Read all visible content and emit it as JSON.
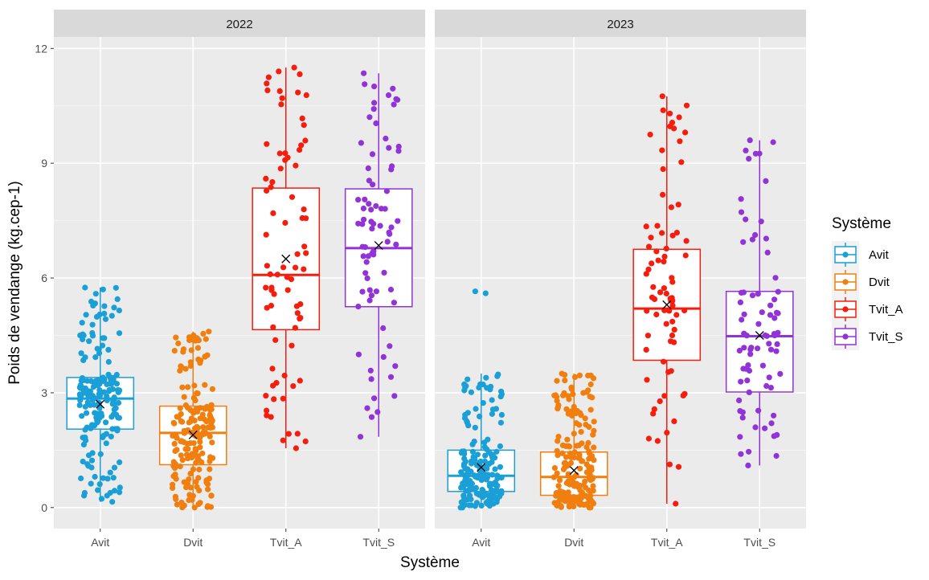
{
  "chart_data": {
    "type": "boxplot",
    "xlabel": "Système",
    "ylabel": "Poids de vendange (kg.cep-1)",
    "ylim": [
      -0.55,
      12.3
    ],
    "yticks": [
      0,
      3,
      6,
      9,
      12
    ],
    "categories": [
      "Avit",
      "Dvit",
      "Tvit_A",
      "Tvit_S"
    ],
    "colors": {
      "Avit": "#1a9fd6",
      "Dvit": "#f07f0f",
      "Tvit_A": "#f51d0d",
      "Tvit_S": "#9133d6"
    },
    "legend": {
      "title": "Système",
      "entries": [
        "Avit",
        "Dvit",
        "Tvit_A",
        "Tvit_S"
      ],
      "position": "right"
    },
    "facets": [
      {
        "label": "2022",
        "groups": [
          {
            "name": "Avit",
            "q1": 2.05,
            "median": 2.85,
            "q3": 3.4,
            "whisker_low": 0.15,
            "whisker_high": 5.75,
            "mean": 2.7,
            "n": 180,
            "extremes": [
              0.15,
              5.75,
              5.7
            ]
          },
          {
            "name": "Dvit",
            "q1": 1.12,
            "median": 1.95,
            "q3": 2.65,
            "whisker_low": 0.0,
            "whisker_high": 4.6,
            "mean": 1.9,
            "n": 180,
            "extremes": [
              0.0,
              4.6,
              4.5
            ]
          },
          {
            "name": "Tvit_A",
            "q1": 4.65,
            "median": 6.08,
            "q3": 8.35,
            "whisker_low": 1.55,
            "whisker_high": 11.5,
            "mean": 6.5,
            "n": 75,
            "extremes": [
              1.55,
              11.5,
              11.4
            ]
          },
          {
            "name": "Tvit_S",
            "q1": 5.25,
            "median": 6.78,
            "q3": 8.33,
            "whisker_low": 1.85,
            "whisker_high": 11.35,
            "mean": 6.85,
            "n": 75,
            "extremes": [
              1.85,
              11.35,
              10.95
            ]
          }
        ]
      },
      {
        "label": "2023",
        "groups": [
          {
            "name": "Avit",
            "q1": 0.42,
            "median": 0.83,
            "q3": 1.5,
            "whisker_low": 0.0,
            "whisker_high": 3.5,
            "mean": 1.05,
            "n": 180,
            "extremes": [
              0.0,
              5.65,
              5.6
            ]
          },
          {
            "name": "Dvit",
            "q1": 0.32,
            "median": 0.8,
            "q3": 1.45,
            "whisker_low": 0.0,
            "whisker_high": 3.5,
            "mean": 0.97,
            "n": 180,
            "extremes": [
              0.0,
              3.5,
              3.45
            ]
          },
          {
            "name": "Tvit_A",
            "q1": 3.85,
            "median": 5.2,
            "q3": 6.75,
            "whisker_low": 0.1,
            "whisker_high": 10.75,
            "mean": 5.3,
            "n": 75,
            "extremes": [
              0.1,
              10.75,
              10.3
            ]
          },
          {
            "name": "Tvit_S",
            "q1": 3.02,
            "median": 4.48,
            "q3": 5.65,
            "whisker_low": 1.1,
            "whisker_high": 9.6,
            "mean": 4.5,
            "n": 75,
            "extremes": [
              1.1,
              9.6,
              9.55
            ]
          }
        ]
      }
    ]
  }
}
